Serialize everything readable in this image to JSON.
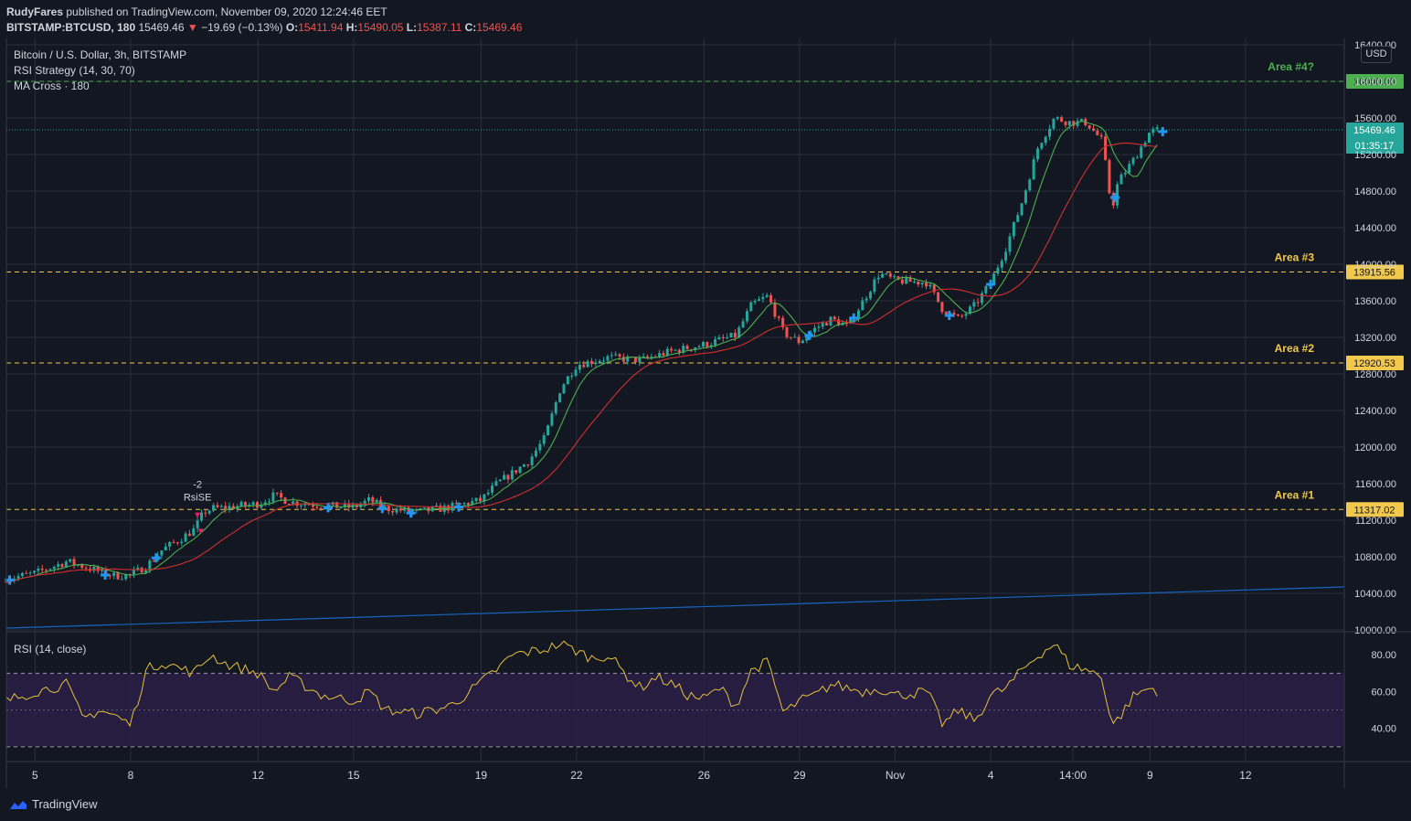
{
  "header": {
    "author": "RudyFares",
    "published": "published on TradingView.com, November 09, 2020 12:24:46 EET",
    "symbol": "BITSTAMP:BTCUSD, 180",
    "price": "15469.46",
    "change_arrow": "▼",
    "change": "−19.69 (−0.13%)",
    "o_label": "O:",
    "o": "15411.94",
    "h_label": "H:",
    "h": "15490.05",
    "l_label": "L:",
    "l": "15387.11",
    "c_label": "C:",
    "c": "15469.46"
  },
  "legend": {
    "title": "Bitcoin / U.S. Dollar, 3h, BITSTAMP",
    "strategy": "RSI Strategy (14, 30, 70)",
    "ma": "MA Cross · 180",
    "rsi": "RSI (14, close)"
  },
  "currency": "USD",
  "branding": "TradingView",
  "colors": {
    "background": "#131722",
    "up": "#26a69a",
    "down": "#ef5350",
    "ma_fast": "#4caf50",
    "ma_slow": "#d32f2f",
    "level_yellow": "#f2c94c",
    "level_green": "#4caf50",
    "rsi_line": "#e5c13c",
    "rsi_band": "#2a1f45",
    "trend_line": "#1565c0",
    "buy_marker": "#2196f3",
    "sell_marker": "#e91e63"
  },
  "chart_data": [
    {
      "type": "candlestick",
      "title": "Bitcoin / U.S. Dollar, 3h, BITSTAMP",
      "x_ticks": [
        "5",
        "8",
        "12",
        "15",
        "19",
        "22",
        "26",
        "29",
        "Nov",
        "4",
        "14:00",
        "9",
        "12"
      ],
      "x_tick_days": [
        5,
        8,
        12,
        15,
        19,
        22,
        26,
        29,
        32,
        35,
        37.58,
        40,
        43
      ],
      "x_range_days": [
        4.1,
        46.1
      ],
      "y_ticks": [
        "10000.00",
        "10400.00",
        "10800.00",
        "11200.00",
        "11600.00",
        "12000.00",
        "12400.00",
        "12800.00",
        "13200.00",
        "13600.00",
        "14000.00",
        "14400.00",
        "14800.00",
        "15200.00",
        "15600.00",
        "16000.00",
        "16400.00"
      ],
      "ylim": [
        9990,
        16470
      ],
      "price_path": [
        [
          4.1,
          10560
        ],
        [
          5,
          10620
        ],
        [
          6,
          10750
        ],
        [
          7,
          10640
        ],
        [
          7.5,
          10590
        ],
        [
          8,
          10600
        ],
        [
          8.5,
          10700
        ],
        [
          9,
          10880
        ],
        [
          9.5,
          10980
        ],
        [
          10,
          11100
        ],
        [
          10.3,
          11290
        ],
        [
          10.6,
          11330
        ],
        [
          11,
          11340
        ],
        [
          11.5,
          11360
        ],
        [
          12,
          11380
        ],
        [
          12.5,
          11470
        ],
        [
          13,
          11400
        ],
        [
          14,
          11360
        ],
        [
          15,
          11340
        ],
        [
          15.5,
          11420
        ],
        [
          16,
          11330
        ],
        [
          17,
          11290
        ],
        [
          18,
          11340
        ],
        [
          19,
          11420
        ],
        [
          19.5,
          11600
        ],
        [
          20,
          11720
        ],
        [
          20.5,
          11850
        ],
        [
          21,
          12100
        ],
        [
          21.5,
          12650
        ],
        [
          22,
          12900
        ],
        [
          23,
          12980
        ],
        [
          24,
          12950
        ],
        [
          25,
          13050
        ],
        [
          26,
          13120
        ],
        [
          27,
          13220
        ],
        [
          27.5,
          13560
        ],
        [
          28,
          13650
        ],
        [
          28.5,
          13250
        ],
        [
          29,
          13150
        ],
        [
          29.5,
          13300
        ],
        [
          30,
          13400
        ],
        [
          30.5,
          13320
        ],
        [
          31,
          13600
        ],
        [
          31.5,
          13900
        ],
        [
          32,
          13820
        ],
        [
          33,
          13800
        ],
        [
          33.5,
          13500
        ],
        [
          34,
          13400
        ],
        [
          34.5,
          13550
        ],
        [
          35,
          13800
        ],
        [
          35.5,
          14200
        ],
        [
          36,
          14700
        ],
        [
          36.5,
          15300
        ],
        [
          37,
          15600
        ],
        [
          37.5,
          15550
        ],
        [
          38,
          15550
        ],
        [
          38.5,
          15350
        ],
        [
          38.8,
          14600
        ],
        [
          39,
          14900
        ],
        [
          39.5,
          15150
        ],
        [
          40,
          15450
        ],
        [
          40.3,
          15470
        ]
      ],
      "levels": [
        {
          "label": "Area #4?",
          "value": 16000.0,
          "price_label": "16000.00",
          "color": "green"
        },
        {
          "label": "Area #3",
          "value": 13915.56,
          "price_label": "13915.56",
          "color": "yellow"
        },
        {
          "label": "Area #2",
          "value": 12920.53,
          "price_label": "12920.53",
          "color": "yellow"
        },
        {
          "label": "Area #1",
          "value": 11317.02,
          "price_label": "11317.02",
          "color": "yellow"
        }
      ],
      "last_price": {
        "value": 15469.46,
        "label": "15469.46",
        "countdown": "01:35:17"
      },
      "trend_line": [
        [
          4.1,
          10020
        ],
        [
          46.1,
          10470
        ]
      ],
      "buy_signals": [
        4.2,
        7.2,
        8.8,
        14.2,
        15.9,
        16.8,
        18.3,
        29.3,
        30.7,
        33.7,
        35.0,
        38.9,
        40.4
      ],
      "sell_signals": [
        {
          "day": 10.1,
          "label_top": "-2",
          "label": "RsiSE"
        },
        {
          "day": 10.2
        }
      ]
    },
    {
      "type": "line",
      "title": "RSI (14, close)",
      "y_ticks": [
        "40.00",
        "60.00",
        "80.00"
      ],
      "ylim": [
        22,
        92
      ],
      "band": [
        30,
        70
      ],
      "midline": 50,
      "rsi_path": [
        [
          4.1,
          55
        ],
        [
          5,
          60
        ],
        [
          6,
          64
        ],
        [
          6.5,
          45
        ],
        [
          7,
          50
        ],
        [
          7.5,
          47
        ],
        [
          8,
          42
        ],
        [
          8.5,
          72
        ],
        [
          9,
          76
        ],
        [
          10,
          70
        ],
        [
          10.5,
          80
        ],
        [
          11,
          75
        ],
        [
          12,
          70
        ],
        [
          12.5,
          60
        ],
        [
          13,
          68
        ],
        [
          14,
          58
        ],
        [
          15,
          55
        ],
        [
          15.5,
          60
        ],
        [
          16,
          50
        ],
        [
          17,
          48
        ],
        [
          18,
          52
        ],
        [
          18.5,
          58
        ],
        [
          19,
          65
        ],
        [
          19.5,
          72
        ],
        [
          20,
          80
        ],
        [
          21,
          83
        ],
        [
          21.5,
          86
        ],
        [
          22,
          82
        ],
        [
          22.5,
          78
        ],
        [
          23,
          80
        ],
        [
          23.5,
          70
        ],
        [
          24,
          62
        ],
        [
          24.5,
          68
        ],
        [
          25,
          64
        ],
        [
          25.5,
          58
        ],
        [
          26,
          56
        ],
        [
          26.5,
          62
        ],
        [
          27,
          52
        ],
        [
          27.5,
          72
        ],
        [
          28,
          76
        ],
        [
          28.5,
          48
        ],
        [
          29,
          55
        ],
        [
          29.5,
          58
        ],
        [
          30,
          64
        ],
        [
          31,
          60
        ],
        [
          31.5,
          62
        ],
        [
          32,
          58
        ],
        [
          33,
          60
        ],
        [
          33.5,
          42
        ],
        [
          34,
          50
        ],
        [
          34.5,
          44
        ],
        [
          35,
          58
        ],
        [
          35.5,
          62
        ],
        [
          36,
          72
        ],
        [
          36.5,
          80
        ],
        [
          37,
          86
        ],
        [
          37.5,
          74
        ],
        [
          38,
          72
        ],
        [
          38.5,
          68
        ],
        [
          38.8,
          42
        ],
        [
          39,
          45
        ],
        [
          39.5,
          58
        ],
        [
          40,
          62
        ],
        [
          40.3,
          60
        ]
      ]
    }
  ]
}
